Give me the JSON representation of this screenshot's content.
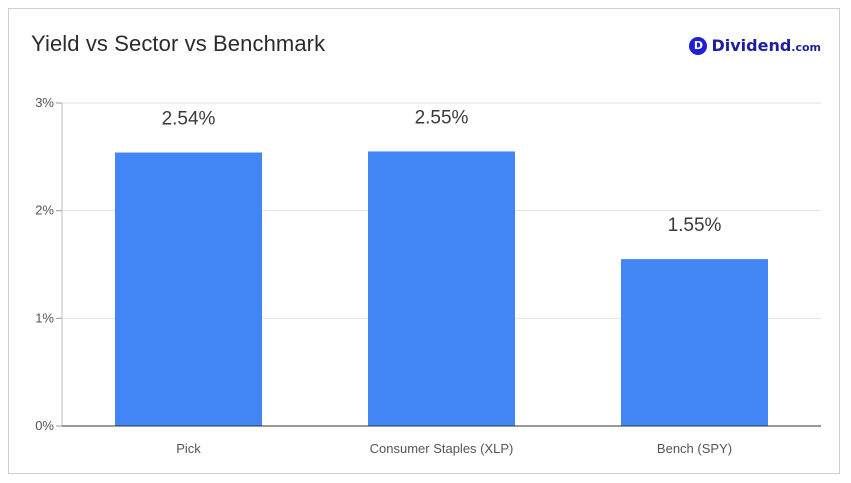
{
  "header": {
    "title": "Yield vs Sector vs Benchmark",
    "logo": {
      "mark": "D",
      "word": "Dividend",
      "tld": ".com",
      "color": "#1f1fd6"
    }
  },
  "chart_data": {
    "type": "bar",
    "title": "Yield vs Sector vs Benchmark",
    "categories": [
      "Pick",
      "Consumer Staples (XLP)",
      "Bench (SPY)"
    ],
    "values": [
      2.54,
      2.55,
      1.55
    ],
    "data_labels": [
      "2.54%",
      "2.55%",
      "1.55%"
    ],
    "ylim": [
      0,
      3
    ],
    "y_ticks": [
      0,
      1,
      2,
      3
    ],
    "y_tick_labels": [
      "0%",
      "1%",
      "2%",
      "3%"
    ],
    "xlabel": "",
    "ylabel": "",
    "grid": true,
    "bar_color": "#4285f4"
  }
}
